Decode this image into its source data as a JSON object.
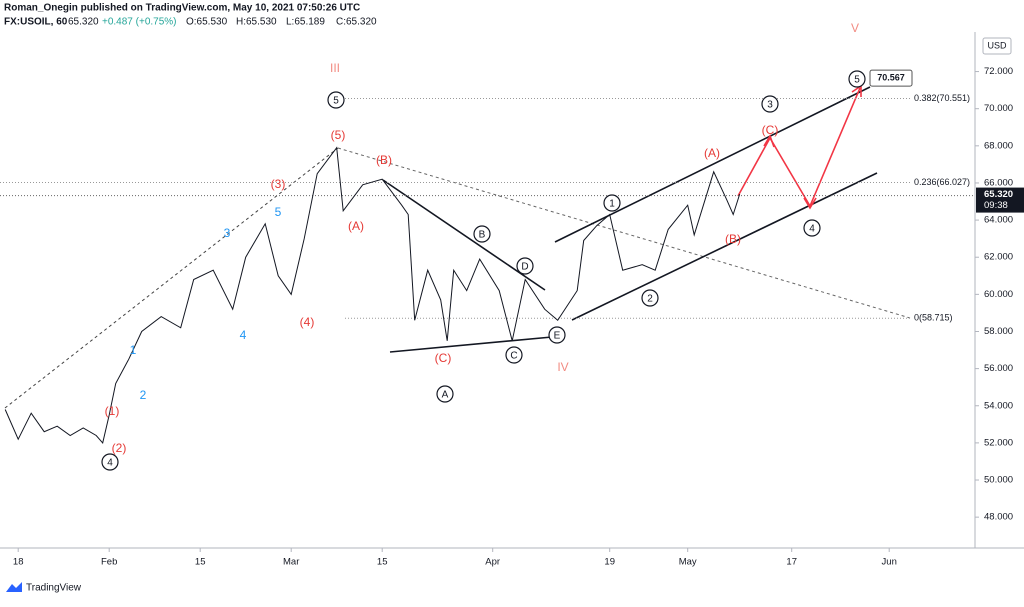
{
  "header": {
    "author_line": "Roman_Onegin published on TradingView.com, May 10, 2021 07:50:26 UTC",
    "symbol": "FX:USOIL, 60",
    "last": "65.320",
    "change": "+0.487 (+0.75%)",
    "ohlc": [
      "O:65.530",
      "H:65.530",
      "L:65.189",
      "C:65.320"
    ]
  },
  "footer": {
    "brand": "TradingView"
  },
  "chart_data": {
    "type": "line",
    "currency": "USD",
    "color": "#131722",
    "x": [
      15,
      17,
      19,
      21,
      23,
      25,
      27,
      29,
      30,
      31,
      32,
      34,
      36,
      39,
      42,
      44,
      47,
      50,
      52,
      55,
      57,
      59,
      61,
      63,
      66,
      67,
      70,
      73,
      76,
      77,
      78,
      80,
      82,
      83,
      84,
      86,
      88,
      91,
      93,
      95,
      98,
      100,
      103,
      104,
      106,
      108,
      110,
      113,
      115,
      117,
      120,
      121,
      124,
      126,
      127,
      128
    ],
    "series": [
      {
        "name": "FX:USOIL",
        "values": [
          53.8,
          52.2,
          53.6,
          52.6,
          52.9,
          52.4,
          52.8,
          52.4,
          52.0,
          53.5,
          55.2,
          56.5,
          58.0,
          58.8,
          58.2,
          60.8,
          61.3,
          59.2,
          62.0,
          63.8,
          61.0,
          60.0,
          63.0,
          66.5,
          67.9,
          64.5,
          65.9,
          66.2,
          64.8,
          64.3,
          58.6,
          61.3,
          59.7,
          57.5,
          61.3,
          60.2,
          61.9,
          60.2,
          57.5,
          60.8,
          59.2,
          58.6,
          60.2,
          62.9,
          63.7,
          64.3,
          61.3,
          61.6,
          61.3,
          63.5,
          64.8,
          63.2,
          66.6,
          65.1,
          64.3,
          65.4
        ]
      }
    ],
    "xlim": [
      14.2,
      164.2
    ],
    "ylim": [
      46.5,
      73.7
    ],
    "xticks": [
      {
        "value": 17,
        "label": "18"
      },
      {
        "value": 31,
        "label": "Feb"
      },
      {
        "value": 45,
        "label": "15"
      },
      {
        "value": 59,
        "label": "Mar"
      },
      {
        "value": 73,
        "label": "15"
      },
      {
        "value": 90,
        "label": "Apr"
      },
      {
        "value": 108,
        "label": "19"
      },
      {
        "value": 120,
        "label": "May"
      },
      {
        "value": 136,
        "label": "17"
      },
      {
        "value": 151,
        "label": "Jun"
      }
    ],
    "yticks": [
      {
        "value": 48,
        "label": "48.000"
      },
      {
        "value": 50,
        "label": "50.000"
      },
      {
        "value": 52,
        "label": "52.000"
      },
      {
        "value": 54,
        "label": "54.000"
      },
      {
        "value": 56,
        "label": "56.000"
      },
      {
        "value": 58,
        "label": "58.000"
      },
      {
        "value": 60,
        "label": "60.000"
      },
      {
        "value": 62,
        "label": "62.000"
      },
      {
        "value": 64,
        "label": "64.000"
      },
      {
        "value": 66,
        "label": "66.000"
      },
      {
        "value": 68,
        "label": "68.000"
      },
      {
        "value": 70,
        "label": "70.000"
      },
      {
        "value": 72,
        "label": "72.000"
      }
    ],
    "last_price": {
      "value": 65.32,
      "label": "65.320",
      "countdown": "09:38"
    },
    "target": {
      "value": 70.567,
      "label": "70.567"
    },
    "fib_levels": [
      {
        "value": 70.551,
        "label": "0.382(70.551)"
      },
      {
        "value": 66.027,
        "label": "0.236(66.027)"
      },
      {
        "value": 58.715,
        "label": "0(58.715)"
      }
    ],
    "annotations": [
      {
        "text": "III",
        "color": "#f28b82"
      },
      {
        "text": "(5)",
        "color": "#e53935"
      },
      {
        "text": "(B)",
        "color": "#e53935"
      },
      {
        "text": "(3)",
        "color": "#e53935"
      },
      {
        "text": "(A)",
        "color": "#e53935"
      },
      {
        "text": "(4)",
        "color": "#e53935"
      },
      {
        "text": "(1)",
        "color": "#e53935"
      },
      {
        "text": "(2)",
        "color": "#e53935"
      },
      {
        "text": "(C)",
        "color": "#e53935"
      },
      {
        "text": "IV",
        "color": "#f28b82"
      },
      {
        "text": "(A)",
        "color": "#e53935"
      },
      {
        "text": "(C)",
        "color": "#e53935"
      },
      {
        "text": "(B)",
        "color": "#e53935"
      },
      {
        "text": "V",
        "color": "#f28b82"
      },
      {
        "text": "5",
        "color": "#2196f3"
      },
      {
        "text": "3",
        "color": "#2196f3"
      },
      {
        "text": "1",
        "color": "#2196f3"
      },
      {
        "text": "2",
        "color": "#2196f3"
      },
      {
        "text": "4",
        "color": "#2196f3"
      },
      {
        "text": "5",
        "color": "#131722",
        "circled": true
      },
      {
        "text": "4",
        "color": "#131722",
        "circled": true
      },
      {
        "text": "A",
        "color": "#131722",
        "circled": true
      },
      {
        "text": "C",
        "color": "#131722",
        "circled": true
      },
      {
        "text": "E",
        "color": "#131722",
        "circled": true
      },
      {
        "text": "D",
        "color": "#131722",
        "circled": true
      },
      {
        "text": "B",
        "color": "#131722",
        "circled": true
      },
      {
        "text": "1",
        "color": "#131722",
        "circled": true
      },
      {
        "text": "2",
        "color": "#131722",
        "circled": true
      },
      {
        "text": "3",
        "color": "#131722",
        "circled": true
      },
      {
        "text": "4",
        "color": "#131722",
        "circled": true
      },
      {
        "text": "5",
        "color": "#131722",
        "circled": true
      }
    ]
  }
}
